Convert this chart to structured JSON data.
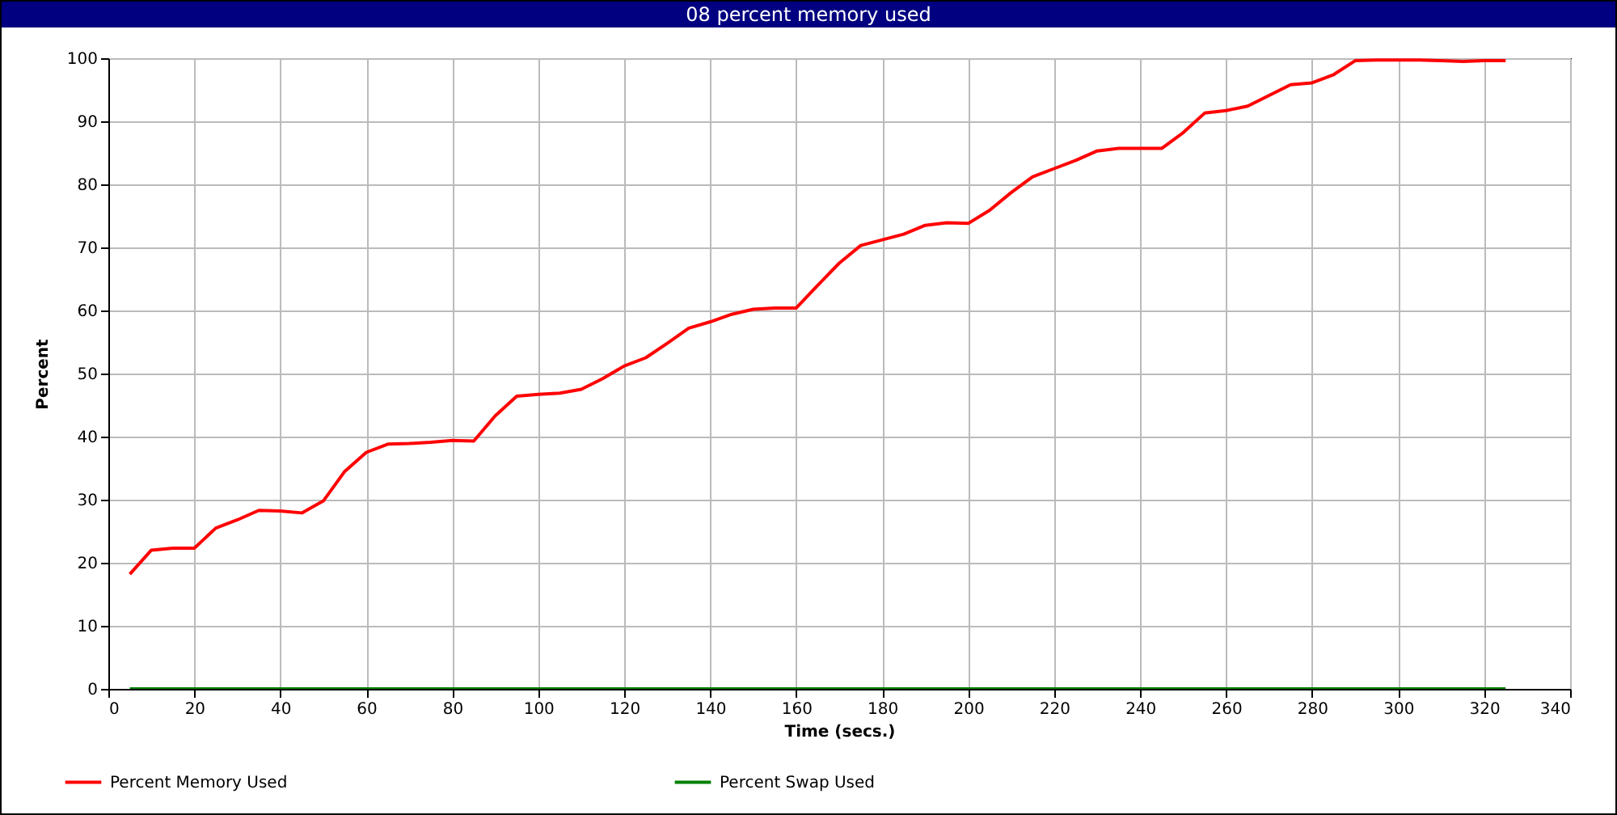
{
  "chart_data": {
    "type": "line",
    "title": "08 percent memory used",
    "xlabel": "Time (secs.)",
    "ylabel": "Percent",
    "x": [
      5,
      10,
      15,
      20,
      25,
      30,
      35,
      40,
      45,
      50,
      55,
      60,
      65,
      70,
      75,
      80,
      85,
      90,
      95,
      100,
      105,
      110,
      115,
      120,
      125,
      130,
      135,
      140,
      145,
      150,
      155,
      160,
      165,
      170,
      175,
      180,
      185,
      190,
      195,
      200,
      205,
      210,
      215,
      220,
      225,
      230,
      235,
      240,
      245,
      250,
      255,
      260,
      265,
      270,
      275,
      280,
      285,
      290,
      295,
      300,
      305,
      310,
      315,
      320,
      325
    ],
    "series": [
      {
        "name": "Percent Memory Used",
        "color": "#ff0000",
        "values": [
          18.2,
          22,
          22.3,
          22.3,
          25.5,
          26.8,
          28.3,
          28.2,
          27.9,
          29.8,
          34.5,
          37.5,
          38.8,
          38.9,
          39.1,
          39.4,
          39.3,
          43.3,
          46.4,
          46.7,
          46.9,
          47.5,
          49.2,
          51.2,
          52.5,
          54.8,
          57.2,
          58.2,
          59.4,
          60.2,
          60.4,
          60.4,
          64,
          67.5,
          70.3,
          71.2,
          72.1,
          73.5,
          73.9,
          73.8,
          75.9,
          78.7,
          81.2,
          82.5,
          83.8,
          85.3,
          85.7,
          85.7,
          85.7,
          88.2,
          91.3,
          91.7,
          92.4,
          94.1,
          95.8,
          96.1,
          97.4,
          99.6,
          99.7,
          99.7,
          99.7,
          99.6,
          99.5,
          99.6,
          99.6
        ]
      },
      {
        "name": "Percent Swap Used",
        "color": "#008000",
        "values": [
          0,
          0,
          0,
          0,
          0,
          0,
          0,
          0,
          0,
          0,
          0,
          0,
          0,
          0,
          0,
          0,
          0,
          0,
          0,
          0,
          0,
          0,
          0,
          0,
          0,
          0,
          0,
          0,
          0,
          0,
          0,
          0,
          0,
          0,
          0,
          0,
          0,
          0,
          0,
          0,
          0,
          0,
          0,
          0,
          0,
          0,
          0,
          0,
          0,
          0,
          0,
          0,
          0,
          0,
          0,
          0,
          0,
          0,
          0,
          0,
          0,
          0,
          0,
          0,
          0
        ]
      }
    ],
    "xlim": [
      0,
      340
    ],
    "xticks": [
      0,
      20,
      40,
      60,
      80,
      100,
      120,
      140,
      160,
      180,
      200,
      220,
      240,
      260,
      280,
      300,
      320,
      340
    ],
    "ylim": [
      0,
      100
    ],
    "yticks": [
      0,
      10,
      20,
      30,
      40,
      50,
      60,
      70,
      80,
      90,
      100
    ],
    "grid": true,
    "legend": "bottom",
    "marker": "none",
    "line_style": "solid"
  }
}
